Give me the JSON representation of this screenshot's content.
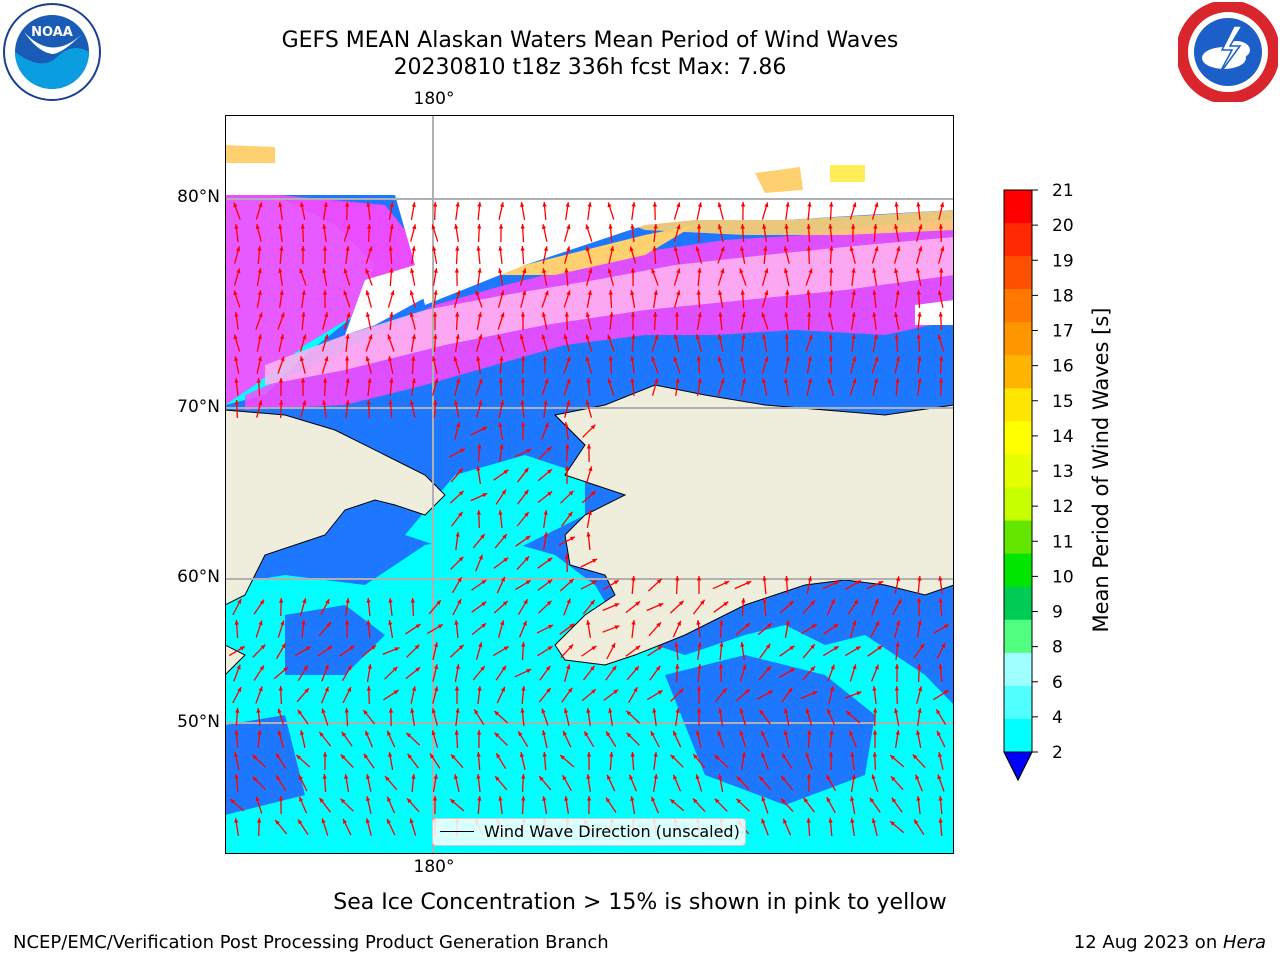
{
  "title": {
    "line1": "GEFS MEAN Alaskan Waters Mean Period of Wind Waves",
    "line2": "20230810 t18z 336h fcst   Max: 7.86"
  },
  "logos": {
    "left": {
      "icon": "noaa-logo-icon",
      "text": "NOAA"
    },
    "right": {
      "icon": "nws-logo-icon"
    }
  },
  "map": {
    "projection": "polar stereographic",
    "lon_label_top": "180°",
    "lon_label_bottom": "180°",
    "lat_labels": [
      "80°N",
      "70°N",
      "60°N",
      "50°N"
    ],
    "ocean_low_color": "#1E78FF",
    "ocean_mid_color": "#00FFFF",
    "land_color": "#EFEDDC",
    "ice_colors": [
      "#FF48FF",
      "#FFB0F0",
      "#FFD070",
      "#FFEE55"
    ],
    "arrow_color": "#FF0000",
    "grid_color": "#B0B0B0"
  },
  "legend": {
    "label": "Wind Wave Direction (unscaled)"
  },
  "colorbar": {
    "label": "Mean Period of Wind Waves [s]",
    "ticks": [
      "21",
      "20",
      "19",
      "18",
      "17",
      "16",
      "15",
      "14",
      "13",
      "12",
      "11",
      "10",
      "9",
      "8",
      "6",
      "4",
      "2"
    ],
    "colors": [
      "#FF0000",
      "#FF2800",
      "#FF5000",
      "#FF7800",
      "#FF9600",
      "#FFB400",
      "#FFE600",
      "#FFFF00",
      "#E6FF00",
      "#C8FF00",
      "#64E600",
      "#00E600",
      "#00CC55",
      "#50FF80",
      "#A0FFFF",
      "#50FFFF",
      "#00FFFF",
      "#1E78FF"
    ],
    "extend_color": "#0000FF"
  },
  "note": "Sea Ice Concentration > 15% is shown in pink to yellow",
  "footer": {
    "left": "NCEP/EMC/Verification Post Processing Product Generation Branch",
    "right_date": "12 Aug 2023 on ",
    "right_machine": "Hera"
  }
}
